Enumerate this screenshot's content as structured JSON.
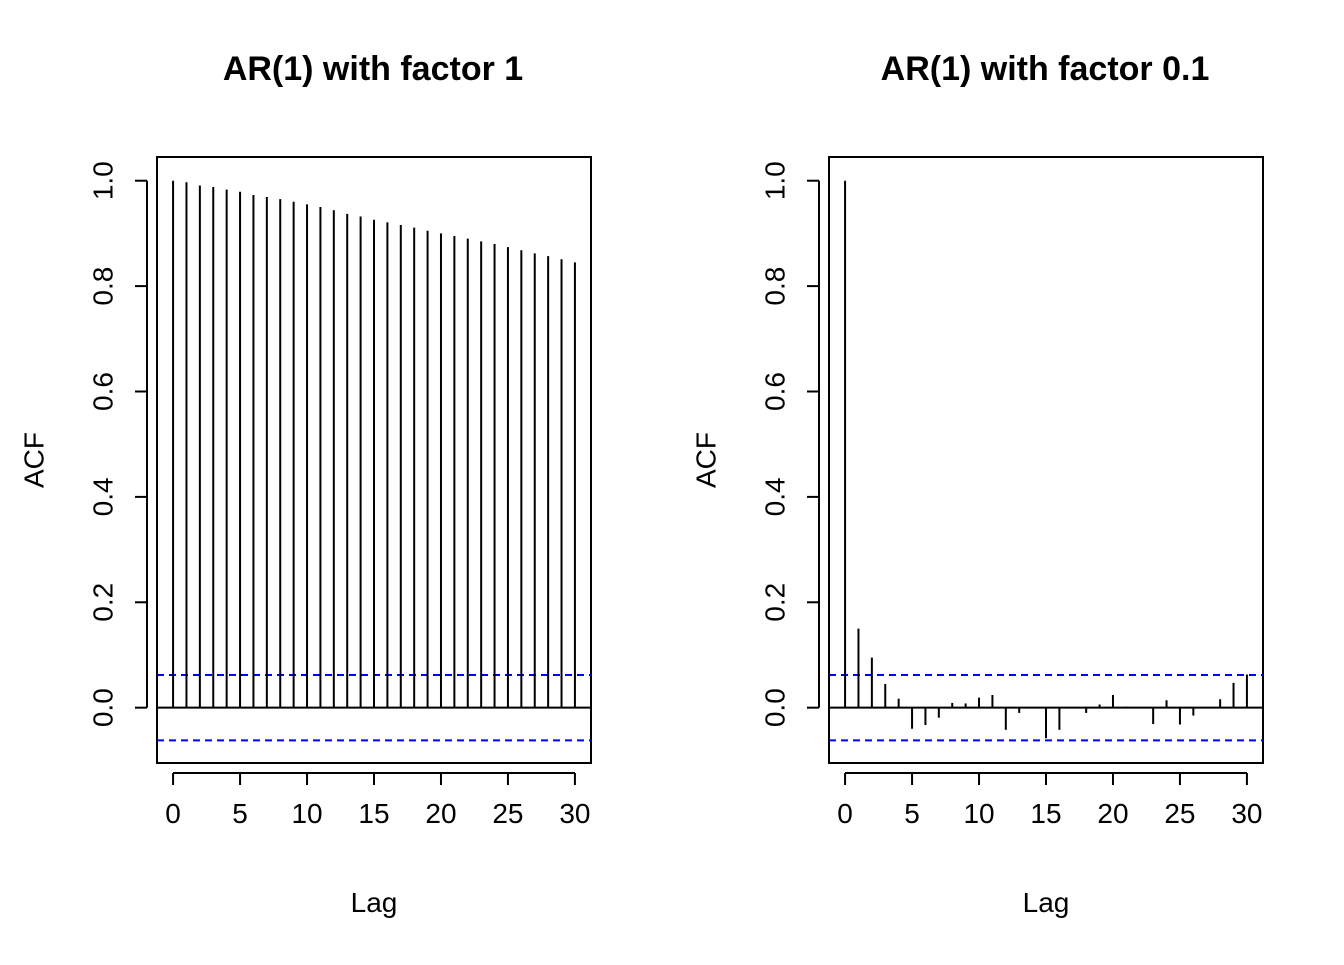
{
  "chart_data": [
    {
      "type": "bar",
      "title": "AR(1) with factor 1",
      "xlabel": "Lag",
      "ylabel": "ACF",
      "xlim": [
        -1.2,
        31.2
      ],
      "ylim": [
        -0.105,
        1.045
      ],
      "x_ticks": [
        "0",
        "5",
        "10",
        "15",
        "20",
        "25",
        "30"
      ],
      "y_ticks": [
        "0.0",
        "0.2",
        "0.4",
        "0.6",
        "0.8",
        "1.0"
      ],
      "ci": 0.062,
      "ci_color": "#0000ff",
      "lags": [
        0,
        1,
        2,
        3,
        4,
        5,
        6,
        7,
        8,
        9,
        10,
        11,
        12,
        13,
        14,
        15,
        16,
        17,
        18,
        19,
        20,
        21,
        22,
        23,
        24,
        25,
        26,
        27,
        28,
        29,
        30
      ],
      "values": [
        1.0,
        0.997,
        0.991,
        0.988,
        0.983,
        0.979,
        0.973,
        0.969,
        0.965,
        0.96,
        0.955,
        0.95,
        0.944,
        0.937,
        0.932,
        0.926,
        0.921,
        0.916,
        0.911,
        0.905,
        0.9,
        0.895,
        0.89,
        0.885,
        0.88,
        0.874,
        0.868,
        0.862,
        0.857,
        0.851,
        0.845
      ],
      "grid": false
    },
    {
      "type": "bar",
      "title": "AR(1) with factor 0.1",
      "xlabel": "Lag",
      "ylabel": "ACF",
      "xlim": [
        -1.2,
        31.2
      ],
      "ylim": [
        -0.105,
        1.045
      ],
      "x_ticks": [
        "0",
        "5",
        "10",
        "15",
        "20",
        "25",
        "30"
      ],
      "y_ticks": [
        "0.0",
        "0.2",
        "0.4",
        "0.6",
        "0.8",
        "1.0"
      ],
      "ci": 0.062,
      "ci_color": "#0000ff",
      "lags": [
        0,
        1,
        2,
        3,
        4,
        5,
        6,
        7,
        8,
        9,
        10,
        11,
        12,
        13,
        14,
        15,
        16,
        17,
        18,
        19,
        20,
        21,
        22,
        23,
        24,
        25,
        26,
        27,
        28,
        29,
        30
      ],
      "values": [
        1.0,
        0.15,
        0.095,
        0.045,
        0.017,
        -0.04,
        -0.033,
        -0.019,
        0.009,
        0.008,
        0.019,
        0.024,
        -0.042,
        -0.01,
        0.0,
        -0.058,
        -0.042,
        0.0,
        -0.01,
        0.006,
        0.024,
        0.002,
        0.0,
        -0.031,
        0.014,
        -0.032,
        -0.015,
        0.0,
        0.016,
        0.047,
        0.063
      ],
      "grid": false
    }
  ]
}
